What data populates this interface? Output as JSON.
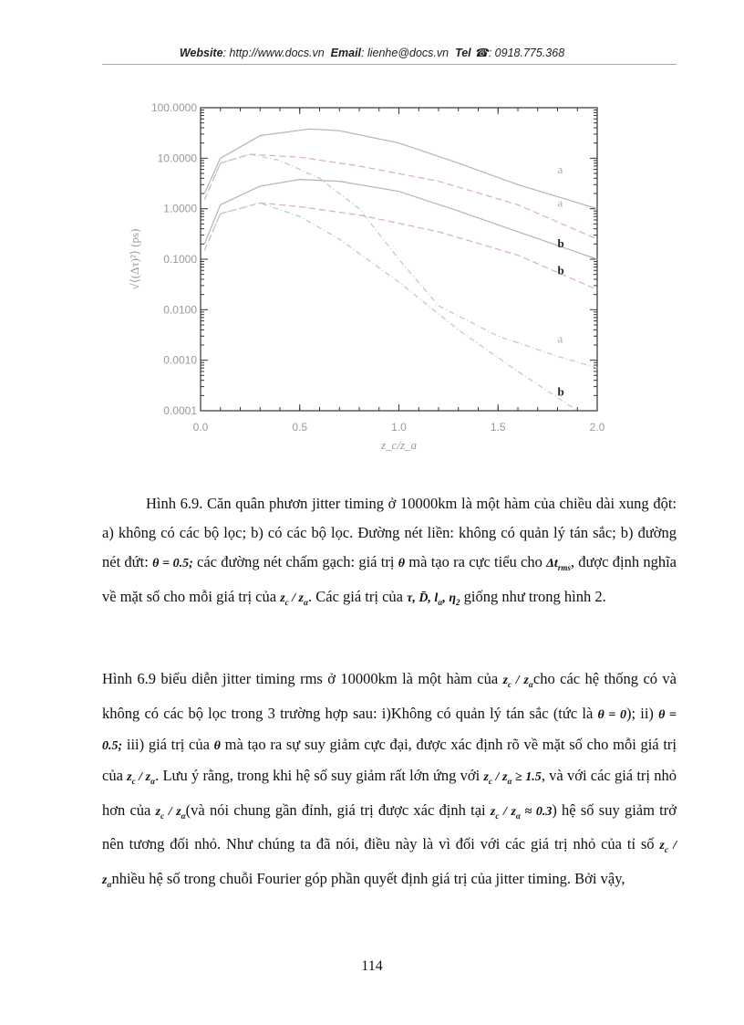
{
  "header": {
    "website_label": "Website",
    "website": ": http://www.docs.vn",
    "email_label": "Email",
    "email": ": lienhe@docs.vn",
    "tel_label": "Tel",
    "tel": ": 0918.775.368",
    "phone_icon": "phone-icon"
  },
  "chart_data": {
    "type": "line",
    "xlabel": "z_c/z_a",
    "ylabel": "√⟨(Δτ)²⟩ (ps)",
    "xlim": [
      0,
      2
    ],
    "ylim": [
      0.0001,
      100
    ],
    "yscale": "log",
    "xticks": [
      "0.0",
      "0.5",
      "1.0",
      "1.5",
      "2.0"
    ],
    "yticks": [
      "100.0000",
      "10.0000",
      "1.0000",
      "0.1000",
      "0.0100",
      "0.0010",
      "0.0001"
    ],
    "grid": false,
    "colors": {
      "solid": "#b4b4b4",
      "dashed": "#d9aacb",
      "dashdot": "#b5cfb5"
    },
    "series": [
      {
        "style": "solid",
        "label": "a",
        "x": [
          0.02,
          0.1,
          0.3,
          0.55,
          0.7,
          1.0,
          1.3,
          1.6,
          2.0
        ],
        "y": [
          2,
          10,
          28,
          38,
          35,
          20,
          8,
          3,
          1.0
        ]
      },
      {
        "style": "dashed",
        "label": "a",
        "x": [
          0.02,
          0.1,
          0.25,
          0.5,
          0.8,
          1.2,
          1.6,
          2.0
        ],
        "y": [
          1.5,
          8,
          12,
          10.5,
          7,
          3.5,
          1.2,
          0.25
        ]
      },
      {
        "style": "dashdot",
        "label": "a",
        "x": [
          0.02,
          0.1,
          0.25,
          0.4,
          0.6,
          0.8,
          1.0,
          1.2,
          1.5,
          1.8,
          2.0
        ],
        "y": [
          1.5,
          8,
          12,
          9,
          4,
          1,
          0.1,
          0.012,
          0.003,
          0.0012,
          0.0007
        ]
      },
      {
        "style": "solid",
        "label": "b",
        "x": [
          0.02,
          0.1,
          0.3,
          0.5,
          0.7,
          1.0,
          1.3,
          1.6,
          2.0
        ],
        "y": [
          0.2,
          1.2,
          2.8,
          3.8,
          3.5,
          2.2,
          0.9,
          0.35,
          0.1
        ]
      },
      {
        "style": "dashed",
        "label": "b",
        "x": [
          0.02,
          0.1,
          0.3,
          0.5,
          0.8,
          1.2,
          1.6,
          2.0
        ],
        "y": [
          0.15,
          0.8,
          1.3,
          1.1,
          0.75,
          0.35,
          0.12,
          0.025
        ]
      },
      {
        "style": "dashdot",
        "label": "b",
        "x": [
          0.02,
          0.1,
          0.3,
          0.5,
          0.7,
          1.0,
          1.3,
          1.6,
          1.9
        ],
        "y": [
          0.15,
          0.8,
          1.3,
          0.7,
          0.25,
          0.035,
          0.004,
          0.0006,
          0.0001
        ]
      }
    ],
    "annotations": [
      {
        "text": "a",
        "x": 1.8,
        "y": 5
      },
      {
        "text": "a",
        "x": 1.8,
        "y": 1.1
      },
      {
        "text": "b",
        "x": 1.8,
        "y": 0.17
      },
      {
        "text": "b",
        "x": 1.8,
        "y": 0.05
      },
      {
        "text": "a",
        "x": 1.8,
        "y": 0.0022
      },
      {
        "text": "b",
        "x": 1.8,
        "y": 0.0002
      }
    ]
  },
  "caption": {
    "l1": "Hình 6.9. Căn quân phươn jitter  timing  ở 10000km  là  một hàm  của chiều dài xung đột: a) không có các bộ lọc; b) có các bộ lọc. Đường nét liền:  không có quản lý tán sắc; b) đường nét đứt: ",
    "m1": "θ = 0.5;",
    "l2": " các đường nét chấm gạch: giá trị ",
    "m2": "θ",
    "l3": " mà tạo ra cực tiểu cho ",
    "m3": "Δt",
    "m3sub": "rms",
    "l4": ", được định nghĩa về mặt số cho mỗi giá trị của ",
    "m4": "z",
    "m4a": "c",
    "m4b": " / z",
    "m4c": "α",
    "l5": ". Các giá trị của ",
    "m5": "τ, D̄, l",
    "m5a": "α",
    "m5b": ", η",
    "m5c": "2",
    "l6": " giống như trong hình 2."
  },
  "body": {
    "t1": "Hình 6.9 biểu diễn jitter timing rms ở 10000km là một hàm của ",
    "t2": "cho các hệ thống có và không có các bộ lọc trong 3 trường hợp sau: i)Không có quản lý tán sắc (tức là ",
    "m_theta0": "θ = 0",
    "t3": "); ii) ",
    "m_theta05": "θ = 0.5;",
    "t4": " iii) giá trị của ",
    "m_theta": "θ",
    "t5": " mà tạo ra sự suy giảm cực đại, được xác định rõ về mặt số cho mỗi giá trị của ",
    "t6": ". Lưu ý rằng, trong khi hệ số suy giảm rất lớn ứng với ",
    "m_ge": " ≥ 1.5",
    "t7": ", và với các giá trị nhỏ hơn của ",
    "t8": "(và nói chung gần đỉnh, giá trị được xác định tại ",
    "m_approx": " ≈ 0.3",
    "t9": ") hệ số suy giảm trở nên tương đối nhỏ. Như chúng ta đã nói, điều này là vì đối với các giá trị nhỏ của tỉ số ",
    "t10": "nhiều hệ số trong chuỗi Fourier góp phần quyết định giá trị của jitter timing. Bởi vậy,",
    "zz": "z",
    "zc": "c",
    "zs": " / z",
    "za": "α"
  },
  "page_number": "114"
}
